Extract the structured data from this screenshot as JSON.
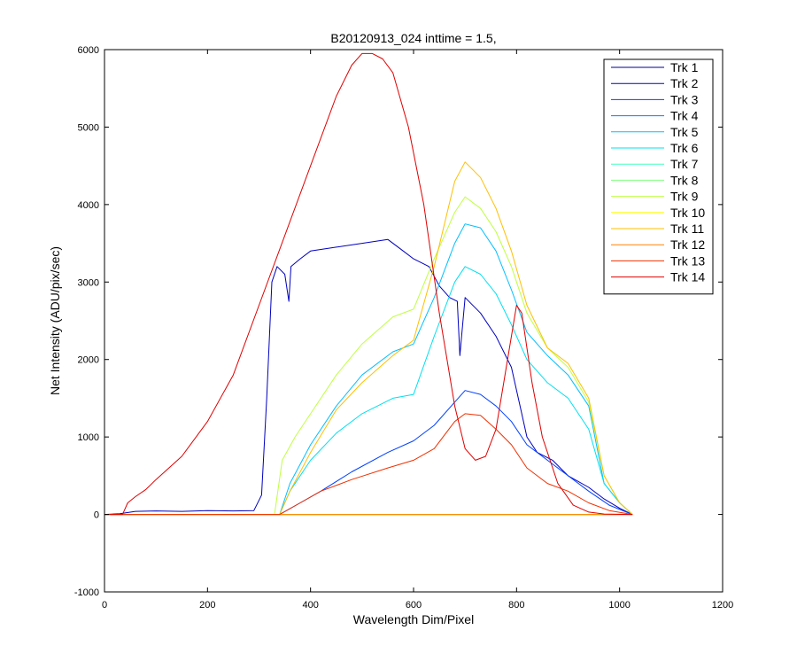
{
  "chart_data": {
    "type": "line",
    "title": "B20120913_024 inttime = 1.5,",
    "xlabel": "Wavelength Dim/Pixel",
    "ylabel": "Net Intensity (ADU/pix/sec)",
    "xlim": [
      0,
      1200
    ],
    "ylim": [
      -1000,
      6000
    ],
    "xticks": [
      0,
      200,
      400,
      600,
      800,
      1000,
      1200
    ],
    "yticks": [
      -1000,
      0,
      1000,
      2000,
      3000,
      4000,
      5000,
      6000
    ],
    "grid": false,
    "legend_position": "top-right",
    "series": [
      {
        "name": "Trk 1",
        "color": "#00008f",
        "points": [
          [
            0,
            0
          ],
          [
            1025,
            0
          ]
        ]
      },
      {
        "name": "Trk 2",
        "color": "#0000bf",
        "points": [
          [
            0,
            0
          ],
          [
            30,
            10
          ],
          [
            60,
            40
          ],
          [
            100,
            45
          ],
          [
            150,
            40
          ],
          [
            200,
            50
          ],
          [
            250,
            45
          ],
          [
            290,
            50
          ],
          [
            305,
            250
          ],
          [
            315,
            1500
          ],
          [
            325,
            3000
          ],
          [
            335,
            3200
          ],
          [
            350,
            3100
          ],
          [
            358,
            2750
          ],
          [
            362,
            3200
          ],
          [
            380,
            3300
          ],
          [
            400,
            3400
          ],
          [
            450,
            3450
          ],
          [
            500,
            3500
          ],
          [
            550,
            3550
          ],
          [
            580,
            3400
          ],
          [
            600,
            3300
          ],
          [
            630,
            3200
          ],
          [
            650,
            2950
          ],
          [
            670,
            2800
          ],
          [
            685,
            2750
          ],
          [
            690,
            2050
          ],
          [
            700,
            2800
          ],
          [
            730,
            2600
          ],
          [
            760,
            2300
          ],
          [
            790,
            1900
          ],
          [
            810,
            1300
          ],
          [
            820,
            1000
          ],
          [
            840,
            800
          ],
          [
            870,
            700
          ],
          [
            900,
            500
          ],
          [
            940,
            350
          ],
          [
            970,
            200
          ],
          [
            1000,
            80
          ],
          [
            1025,
            0
          ]
        ]
      },
      {
        "name": "Trk 3",
        "color": "#0040ff",
        "points": [
          [
            0,
            0
          ],
          [
            340,
            0
          ],
          [
            380,
            150
          ],
          [
            420,
            300
          ],
          [
            480,
            550
          ],
          [
            550,
            800
          ],
          [
            600,
            950
          ],
          [
            640,
            1150
          ],
          [
            680,
            1450
          ],
          [
            700,
            1600
          ],
          [
            730,
            1550
          ],
          [
            760,
            1400
          ],
          [
            790,
            1200
          ],
          [
            820,
            900
          ],
          [
            860,
            700
          ],
          [
            900,
            500
          ],
          [
            940,
            300
          ],
          [
            980,
            120
          ],
          [
            1025,
            0
          ]
        ]
      },
      {
        "name": "Trk 4",
        "color": "#0080ff",
        "points": [
          [
            0,
            0
          ],
          [
            1025,
            0
          ]
        ]
      },
      {
        "name": "Trk 5",
        "color": "#00bfff",
        "points": [
          [
            0,
            0
          ],
          [
            340,
            0
          ],
          [
            360,
            400
          ],
          [
            400,
            900
          ],
          [
            450,
            1400
          ],
          [
            500,
            1800
          ],
          [
            560,
            2100
          ],
          [
            600,
            2200
          ],
          [
            640,
            2800
          ],
          [
            680,
            3500
          ],
          [
            700,
            3750
          ],
          [
            730,
            3700
          ],
          [
            760,
            3400
          ],
          [
            790,
            2900
          ],
          [
            820,
            2350
          ],
          [
            860,
            2050
          ],
          [
            900,
            1800
          ],
          [
            940,
            1400
          ],
          [
            970,
            400
          ],
          [
            1000,
            150
          ],
          [
            1025,
            0
          ]
        ]
      },
      {
        "name": "Trk 6",
        "color": "#00e0ef",
        "points": [
          [
            0,
            0
          ],
          [
            340,
            0
          ],
          [
            360,
            300
          ],
          [
            400,
            700
          ],
          [
            450,
            1050
          ],
          [
            500,
            1300
          ],
          [
            560,
            1500
          ],
          [
            600,
            1550
          ],
          [
            640,
            2300
          ],
          [
            680,
            3000
          ],
          [
            700,
            3200
          ],
          [
            730,
            3100
          ],
          [
            760,
            2850
          ],
          [
            790,
            2450
          ],
          [
            820,
            2000
          ],
          [
            860,
            1700
          ],
          [
            900,
            1500
          ],
          [
            940,
            1100
          ],
          [
            970,
            400
          ],
          [
            1000,
            150
          ],
          [
            1025,
            0
          ]
        ]
      },
      {
        "name": "Trk 7",
        "color": "#40ffbf",
        "points": [
          [
            0,
            0
          ],
          [
            1025,
            0
          ]
        ]
      },
      {
        "name": "Trk 8",
        "color": "#80ff80",
        "points": [
          [
            0,
            0
          ],
          [
            1025,
            0
          ]
        ]
      },
      {
        "name": "Trk 9",
        "color": "#bfff40",
        "points": [
          [
            0,
            0
          ],
          [
            330,
            0
          ],
          [
            345,
            700
          ],
          [
            370,
            1000
          ],
          [
            400,
            1300
          ],
          [
            450,
            1800
          ],
          [
            500,
            2200
          ],
          [
            560,
            2550
          ],
          [
            600,
            2650
          ],
          [
            640,
            3300
          ],
          [
            680,
            3900
          ],
          [
            700,
            4100
          ],
          [
            730,
            3950
          ],
          [
            760,
            3650
          ],
          [
            790,
            3200
          ],
          [
            820,
            2600
          ],
          [
            860,
            2150
          ],
          [
            900,
            1900
          ],
          [
            940,
            1450
          ],
          [
            970,
            500
          ],
          [
            1000,
            150
          ],
          [
            1025,
            0
          ]
        ]
      },
      {
        "name": "Trk 10",
        "color": "#ffff00",
        "points": [
          [
            0,
            0
          ],
          [
            1025,
            0
          ]
        ]
      },
      {
        "name": "Trk 11",
        "color": "#ffbf00",
        "points": [
          [
            0,
            0
          ],
          [
            340,
            0
          ],
          [
            360,
            300
          ],
          [
            400,
            800
          ],
          [
            450,
            1350
          ],
          [
            500,
            1700
          ],
          [
            560,
            2050
          ],
          [
            600,
            2250
          ],
          [
            640,
            3200
          ],
          [
            680,
            4300
          ],
          [
            700,
            4550
          ],
          [
            730,
            4350
          ],
          [
            760,
            3950
          ],
          [
            790,
            3400
          ],
          [
            820,
            2700
          ],
          [
            860,
            2150
          ],
          [
            900,
            1950
          ],
          [
            940,
            1500
          ],
          [
            970,
            500
          ],
          [
            1000,
            150
          ],
          [
            1025,
            0
          ]
        ]
      },
      {
        "name": "Trk 12",
        "color": "#ff8000",
        "points": [
          [
            0,
            0
          ],
          [
            1025,
            0
          ]
        ]
      },
      {
        "name": "Trk 13",
        "color": "#ef3000",
        "points": [
          [
            0,
            0
          ],
          [
            340,
            0
          ],
          [
            380,
            150
          ],
          [
            420,
            300
          ],
          [
            480,
            450
          ],
          [
            550,
            600
          ],
          [
            600,
            700
          ],
          [
            640,
            850
          ],
          [
            680,
            1200
          ],
          [
            700,
            1300
          ],
          [
            730,
            1280
          ],
          [
            760,
            1100
          ],
          [
            790,
            900
          ],
          [
            820,
            600
          ],
          [
            860,
            400
          ],
          [
            900,
            300
          ],
          [
            940,
            150
          ],
          [
            980,
            50
          ],
          [
            1025,
            0
          ]
        ]
      },
      {
        "name": "Trk 14",
        "color": "#df0000",
        "points": [
          [
            0,
            0
          ],
          [
            35,
            0
          ],
          [
            45,
            150
          ],
          [
            60,
            230
          ],
          [
            80,
            320
          ],
          [
            100,
            450
          ],
          [
            150,
            750
          ],
          [
            200,
            1200
          ],
          [
            250,
            1800
          ],
          [
            300,
            2700
          ],
          [
            350,
            3600
          ],
          [
            400,
            4500
          ],
          [
            450,
            5400
          ],
          [
            480,
            5800
          ],
          [
            500,
            5950
          ],
          [
            520,
            5950
          ],
          [
            540,
            5880
          ],
          [
            560,
            5700
          ],
          [
            590,
            5000
          ],
          [
            620,
            4000
          ],
          [
            650,
            2600
          ],
          [
            680,
            1400
          ],
          [
            700,
            850
          ],
          [
            720,
            700
          ],
          [
            740,
            750
          ],
          [
            760,
            1100
          ],
          [
            780,
            1900
          ],
          [
            800,
            2700
          ],
          [
            810,
            2600
          ],
          [
            830,
            1700
          ],
          [
            850,
            1000
          ],
          [
            880,
            400
          ],
          [
            910,
            120
          ],
          [
            940,
            30
          ],
          [
            970,
            5
          ],
          [
            1025,
            0
          ]
        ]
      }
    ]
  }
}
